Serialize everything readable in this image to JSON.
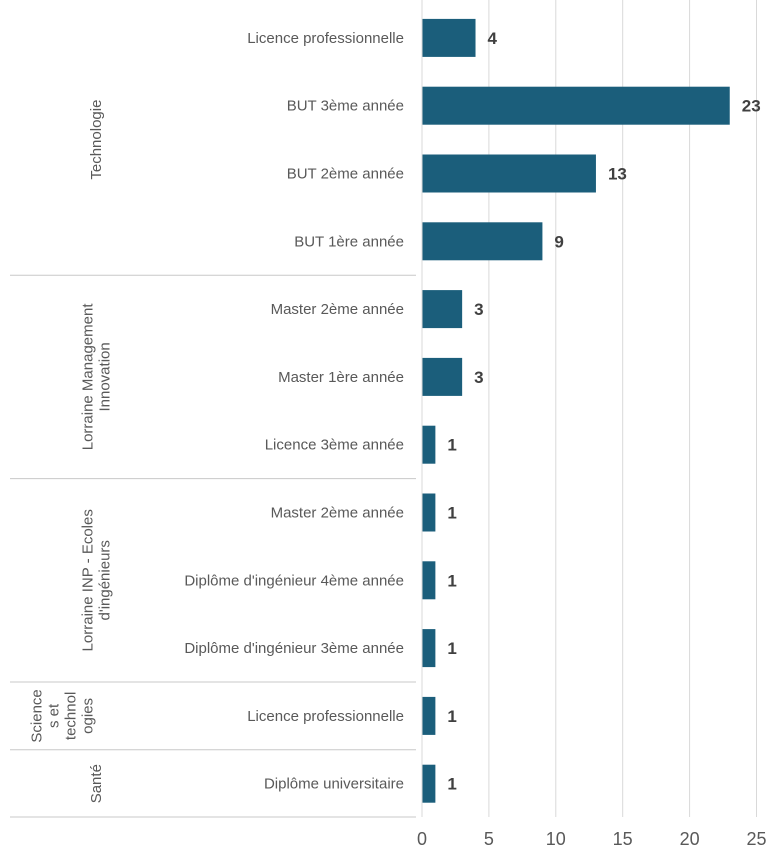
{
  "chart_data": {
    "type": "bar",
    "orientation": "horizontal",
    "bar_color": "#1b5e7b",
    "xlim": [
      0,
      25
    ],
    "x_ticks": [
      "0",
      "5",
      "10",
      "15",
      "20",
      "25"
    ],
    "grid": true,
    "groups": [
      {
        "name": "Technologie",
        "categories": [
          "Licence professionnelle",
          "BUT 3ème année",
          "BUT 2ème année",
          "BUT 1ère année"
        ],
        "values": [
          4,
          23,
          13,
          9
        ]
      },
      {
        "name": "Lorraine Management Innovation",
        "categories": [
          "Master 2ème année",
          "Master 1ère année",
          "Licence 3ème année"
        ],
        "values": [
          3,
          3,
          1
        ]
      },
      {
        "name": "Lorraine INP - Ecoles d'ingénieurs",
        "categories": [
          "Master 2ème année",
          "Diplôme d'ingénieur 4ème année",
          "Diplôme d'ingénieur 3ème année"
        ],
        "values": [
          1,
          1,
          1
        ]
      },
      {
        "name": "Sciences et technologies",
        "categories": [
          "Licence professionnelle"
        ],
        "values": [
          1
        ]
      },
      {
        "name": "Santé",
        "categories": [
          "Diplôme universitaire"
        ],
        "values": [
          1
        ]
      }
    ]
  }
}
